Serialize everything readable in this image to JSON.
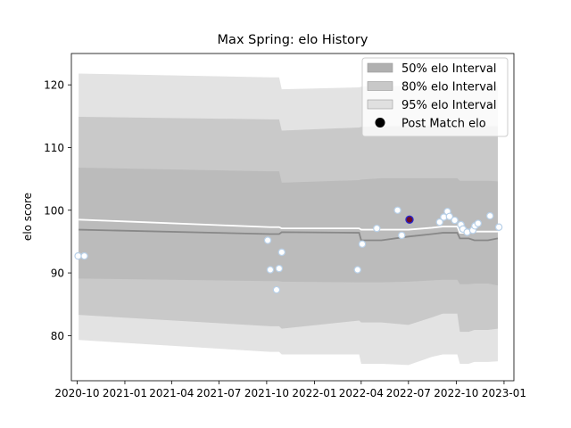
{
  "chart_data": {
    "type": "area",
    "title": "Max Spring: elo History",
    "xlabel": "",
    "ylabel": "elo score",
    "xlim": [
      "2020-09-20",
      "2023-01-20"
    ],
    "ylim": [
      72.8,
      125
    ],
    "grid": false,
    "legend_position": "top-right",
    "x_ticks": [
      {
        "date": "2020-10-01",
        "label": "2020-10"
      },
      {
        "date": "2021-01-01",
        "label": "2021-01"
      },
      {
        "date": "2021-04-01",
        "label": "2021-04"
      },
      {
        "date": "2021-07-01",
        "label": "2021-07"
      },
      {
        "date": "2021-10-01",
        "label": "2021-10"
      },
      {
        "date": "2022-01-01",
        "label": "2022-01"
      },
      {
        "date": "2022-04-01",
        "label": "2022-04"
      },
      {
        "date": "2022-07-01",
        "label": "2022-07"
      },
      {
        "date": "2022-10-01",
        "label": "2022-10"
      },
      {
        "date": "2023-01-01",
        "label": "2023-01"
      }
    ],
    "y_ticks": [
      80,
      90,
      100,
      110,
      120
    ],
    "bands": [
      {
        "name": "95% elo Interval",
        "color": "#e3e3e3",
        "x": [
          "2020-10-04",
          "2021-10-08",
          "2021-10-25",
          "2021-10-30",
          "2022-03-28",
          "2022-04-01",
          "2022-05-10",
          "2022-07-01",
          "2022-08-15",
          "2022-09-05",
          "2022-10-03",
          "2022-10-08",
          "2022-10-25",
          "2022-11-05",
          "2022-12-01",
          "2022-12-20"
        ],
        "lower": [
          79.3,
          77.4,
          77.4,
          77.0,
          77.0,
          75.5,
          75.5,
          75.3,
          76.6,
          77.0,
          77.0,
          75.5,
          75.5,
          75.8,
          75.8,
          75.9
        ],
        "upper": [
          121.8,
          121.2,
          121.2,
          119.3,
          119.6,
          119.7,
          119.8,
          119.8,
          119.8,
          119.8,
          119.8,
          119.8,
          119.8,
          119.8,
          119.8,
          119.8
        ]
      },
      {
        "name": "80% elo Interval",
        "color": "#c9c9c9",
        "x": [
          "2020-10-04",
          "2021-10-08",
          "2021-10-25",
          "2021-10-30",
          "2022-03-28",
          "2022-04-01",
          "2022-05-10",
          "2022-07-01",
          "2022-08-15",
          "2022-09-05",
          "2022-10-03",
          "2022-10-08",
          "2022-10-25",
          "2022-11-05",
          "2022-12-01",
          "2022-12-20"
        ],
        "lower": [
          83.3,
          81.5,
          81.5,
          81.1,
          82.4,
          82.1,
          82.1,
          81.7,
          82.9,
          83.5,
          83.5,
          80.6,
          80.6,
          80.9,
          80.9,
          81.1
        ],
        "upper": [
          114.9,
          114.5,
          114.5,
          112.7,
          113.2,
          113.3,
          113.4,
          113.4,
          113.4,
          113.4,
          113.4,
          113.4,
          113.4,
          113.4,
          113.4,
          113.4
        ]
      },
      {
        "name": "50% elo Interval",
        "color": "#bbbbbb",
        "x": [
          "2020-10-04",
          "2021-10-08",
          "2021-10-25",
          "2021-10-30",
          "2022-03-28",
          "2022-04-01",
          "2022-05-10",
          "2022-07-01",
          "2022-08-15",
          "2022-09-05",
          "2022-10-03",
          "2022-10-08",
          "2022-10-25",
          "2022-11-05",
          "2022-12-01",
          "2022-12-20"
        ],
        "lower": [
          89.1,
          88.7,
          88.7,
          88.6,
          88.5,
          88.5,
          88.5,
          88.6,
          88.8,
          88.9,
          88.9,
          88.2,
          88.2,
          88.3,
          88.3,
          88.0
        ],
        "upper": [
          106.8,
          106.2,
          106.2,
          104.4,
          104.8,
          104.9,
          105.1,
          105.1,
          105.1,
          105.1,
          105.1,
          104.7,
          104.7,
          104.7,
          104.7,
          104.6
        ]
      }
    ],
    "lines": [
      {
        "role": "mean",
        "color": "#ffffff",
        "x": [
          "2020-10-04",
          "2021-10-08",
          "2021-10-25",
          "2021-10-30",
          "2022-03-28",
          "2022-04-01",
          "2022-05-10",
          "2022-07-01",
          "2022-08-15",
          "2022-09-05",
          "2022-10-03",
          "2022-10-08",
          "2022-10-25",
          "2022-11-05",
          "2022-12-01",
          "2022-12-20"
        ],
        "y": [
          98.5,
          97.3,
          97.3,
          97.1,
          97.1,
          96.9,
          96.9,
          96.9,
          97.2,
          97.4,
          97.4,
          96.4,
          96.4,
          96.6,
          96.6,
          96.6
        ]
      },
      {
        "role": "median",
        "color": "#888888",
        "x": [
          "2020-10-04",
          "2021-10-08",
          "2021-10-25",
          "2021-10-30",
          "2022-03-28",
          "2022-04-01",
          "2022-05-10",
          "2022-07-01",
          "2022-08-15",
          "2022-09-05",
          "2022-10-03",
          "2022-10-08",
          "2022-10-25",
          "2022-11-05",
          "2022-12-01",
          "2022-12-20"
        ],
        "y": [
          96.9,
          96.2,
          96.2,
          96.5,
          96.4,
          95.2,
          95.2,
          95.8,
          96.2,
          96.4,
          96.4,
          95.5,
          95.5,
          95.2,
          95.2,
          95.5
        ]
      }
    ],
    "matches": {
      "x": [
        "2020-10-03",
        "2020-10-15",
        "2021-10-03",
        "2021-10-08",
        "2021-10-20",
        "2021-10-25",
        "2021-10-30",
        "2022-03-25",
        "2022-04-03",
        "2022-05-01",
        "2022-06-10",
        "2022-06-18",
        "2022-08-30",
        "2022-09-07",
        "2022-09-14",
        "2022-09-18",
        "2022-09-28",
        "2022-10-10",
        "2022-10-14",
        "2022-10-22",
        "2022-11-02",
        "2022-11-06",
        "2022-11-12",
        "2022-12-05",
        "2022-12-22"
      ],
      "y": [
        92.7,
        92.7,
        95.2,
        90.5,
        87.3,
        90.7,
        93.3,
        90.5,
        94.6,
        97.1,
        100.0,
        96.0,
        98.1,
        98.9,
        99.8,
        99.0,
        98.4,
        97.7,
        97.0,
        96.5,
        96.8,
        97.5,
        97.9,
        99.1,
        97.3
      ]
    },
    "post_match": {
      "name": "Post Match elo",
      "x": "2022-07-03",
      "y": 98.5
    },
    "legend": [
      {
        "label": "50% elo Interval",
        "kind": "patch",
        "color": "#b0b0b0"
      },
      {
        "label": "80% elo Interval",
        "kind": "patch",
        "color": "#c8c8c8"
      },
      {
        "label": "95% elo Interval",
        "kind": "patch",
        "color": "#e0e0e0"
      },
      {
        "label": "Post Match elo",
        "kind": "marker",
        "color": "#000000"
      }
    ]
  }
}
